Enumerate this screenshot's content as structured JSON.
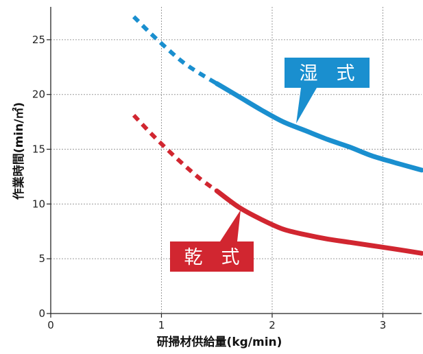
{
  "chart_data": {
    "type": "line",
    "title": "",
    "xlabel": "研掃材供給量(kg/min)",
    "ylabel": "作業時間(min/㎡)",
    "xlim": [
      0,
      3.35
    ],
    "ylim": [
      0,
      28
    ],
    "x_ticks": [
      0,
      1,
      2,
      3
    ],
    "y_ticks": [
      0,
      5,
      10,
      15,
      20,
      25
    ],
    "grid": true,
    "series": [
      {
        "name": "湿 式",
        "color": "#1a8fcf",
        "dashed_x": [
          0.75,
          0.9,
          1.05,
          1.2,
          1.35,
          1.5
        ],
        "dashed_y": [
          27.1,
          25.6,
          24.2,
          22.9,
          21.9,
          21.0
        ],
        "solid_x": [
          1.5,
          1.7,
          1.9,
          2.1,
          2.3,
          2.5,
          2.7,
          2.9,
          3.1,
          3.35
        ],
        "solid_y": [
          21.0,
          19.8,
          18.6,
          17.5,
          16.7,
          15.9,
          15.2,
          14.4,
          13.8,
          13.1
        ]
      },
      {
        "name": "乾 式",
        "color": "#d12630",
        "dashed_x": [
          0.75,
          0.9,
          1.05,
          1.2,
          1.35,
          1.5
        ],
        "dashed_y": [
          18.1,
          16.5,
          15.0,
          13.6,
          12.3,
          11.2
        ],
        "solid_x": [
          1.5,
          1.7,
          1.9,
          2.1,
          2.3,
          2.5,
          2.7,
          2.9,
          3.1,
          3.35
        ],
        "solid_y": [
          11.2,
          9.7,
          8.6,
          7.7,
          7.2,
          6.8,
          6.5,
          6.2,
          5.9,
          5.5
        ]
      }
    ],
    "labels": [
      {
        "text": "湿　式",
        "color": "#1a8fcf"
      },
      {
        "text": "乾　式",
        "color": "#d12630"
      }
    ]
  }
}
